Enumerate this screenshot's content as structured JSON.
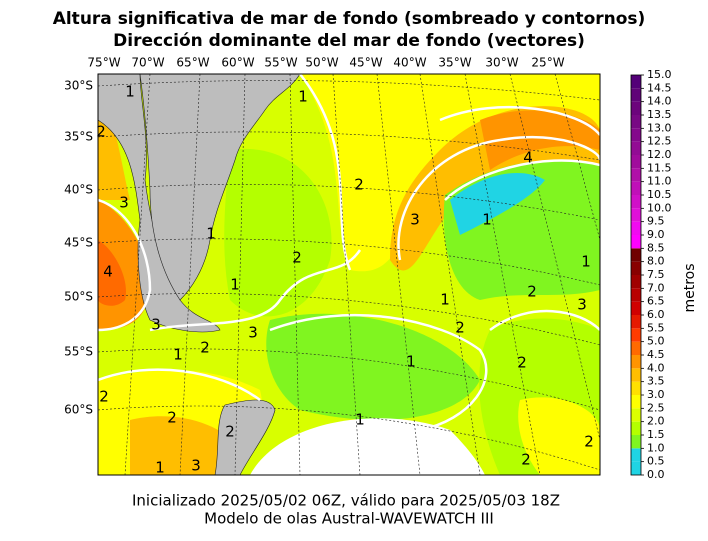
{
  "title": [
    "Altura significativa de mar de fondo (sombreado y contornos)",
    "Dirección dominante del mar de fondo (vectores)"
  ],
  "map": {
    "lon_labels": [
      "75°W",
      "70°W",
      "65°W",
      "60°W",
      "55°W",
      "50°W",
      "45°W",
      "40°W",
      "35°W",
      "30°W",
      "25°W"
    ],
    "lat_labels": [
      "30°S",
      "35°S",
      "40°S",
      "45°S",
      "50°S",
      "55°S",
      "60°S"
    ],
    "contour_labels": [
      1,
      1,
      2,
      2,
      3,
      3,
      1,
      4,
      1,
      2,
      4,
      1,
      1,
      2,
      2,
      3,
      1,
      3,
      3,
      2,
      1,
      1,
      2,
      2,
      1,
      2,
      2,
      2,
      1,
      3,
      2
    ]
  },
  "colorbar": {
    "label": "metros",
    "ticks": [
      {
        "value": 0,
        "label": "0.0"
      },
      {
        "value": 0.5,
        "label": "0.5"
      },
      {
        "value": 1,
        "label": "1.0"
      },
      {
        "value": 1.5,
        "label": "1.5"
      },
      {
        "value": 2,
        "label": "2.0"
      },
      {
        "value": 2.5,
        "label": "2.5"
      },
      {
        "value": 3,
        "label": "3.0"
      },
      {
        "value": 3.5,
        "label": "3.5"
      },
      {
        "value": 4,
        "label": "4.0"
      },
      {
        "value": 4.5,
        "label": "4.5"
      },
      {
        "value": 5,
        "label": "5.0"
      },
      {
        "value": 5.5,
        "label": "5.5"
      },
      {
        "value": 6,
        "label": "6.0"
      },
      {
        "value": 6.5,
        "label": "6.5"
      },
      {
        "value": 7,
        "label": "7.0"
      },
      {
        "value": 7.5,
        "label": "7.5"
      },
      {
        "value": 8,
        "label": "8.0"
      },
      {
        "value": 8.5,
        "label": "8.5"
      },
      {
        "value": 9,
        "label": "9.0"
      },
      {
        "value": 9.5,
        "label": "9.5"
      },
      {
        "value": 10,
        "label": "10.0"
      },
      {
        "value": 10.5,
        "label": "10.5"
      },
      {
        "value": 11,
        "label": "11.0"
      },
      {
        "value": 11.5,
        "label": "11.5"
      },
      {
        "value": 12,
        "label": "12.0"
      },
      {
        "value": 12.5,
        "label": "12.5"
      },
      {
        "value": 13,
        "label": "13.0"
      },
      {
        "value": 13.5,
        "label": "13.5"
      },
      {
        "value": 14,
        "label": "14.0"
      },
      {
        "value": 14.5,
        "label": "14.5"
      },
      {
        "value": 15,
        "label": "15.0"
      }
    ],
    "colors": [
      "#20d4e4",
      "#20d4e4",
      "#80f520",
      "#b4ff00",
      "#dcff00",
      "#ffff00",
      "#ffe000",
      "#ffbe00",
      "#ff9400",
      "#ff6a00",
      "#ff3c00",
      "#e61a00",
      "#d00000",
      "#b80000",
      "#a00000",
      "#880000",
      "#700000",
      "#ff00ff",
      "#f00af0",
      "#e010d8",
      "#d010c8",
      "#c010b8",
      "#b010a8",
      "#a00c9c",
      "#920c94",
      "#84088c",
      "#780884",
      "#6c047c",
      "#600478",
      "#540078"
    ]
  },
  "footer": [
    "Inicializado 2025/05/02 06Z, válido para 2025/05/03 18Z",
    "Modelo de olas Austral-WAVEWATCH III"
  ]
}
